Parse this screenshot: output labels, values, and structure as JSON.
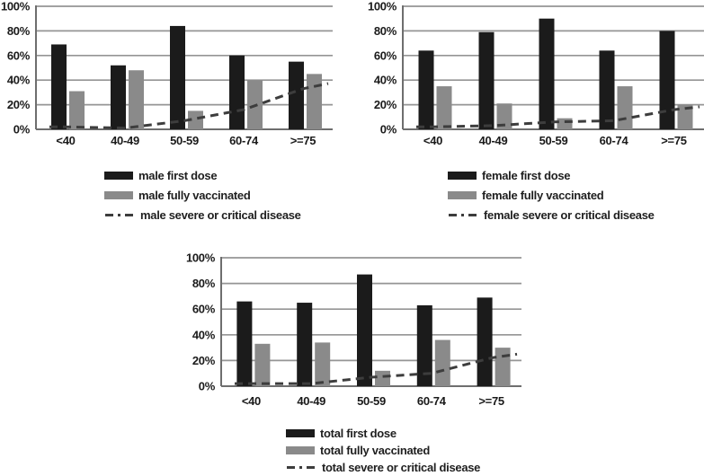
{
  "page": {
    "background": "#ffffff"
  },
  "colors": {
    "bar_dark": "#1b1b1b",
    "bar_gray": "#8a8a8a",
    "dash_line": "#3d3d3d",
    "gridline": "#959595",
    "axis": "#6e6e6e",
    "text": "#1a1a1a"
  },
  "chart_data": [
    {
      "id": "male",
      "type": "bar",
      "title": "",
      "categories": [
        "<40",
        "40-49",
        "50-59",
        "60-74",
        ">=75"
      ],
      "y_tick_labels": [
        "0%",
        "20%",
        "40%",
        "60%",
        "80%",
        "100%"
      ],
      "ylim": [
        0,
        100
      ],
      "grid": true,
      "legend_position": "below-left",
      "series": [
        {
          "name": "male first dose",
          "type": "bar",
          "color": "#1b1b1b",
          "values": [
            69,
            52,
            84,
            60,
            55
          ]
        },
        {
          "name": "male fully vaccinated",
          "type": "bar",
          "color": "#8a8a8a",
          "values": [
            31,
            48,
            15,
            40,
            45
          ]
        },
        {
          "name": "male severe or critical disease",
          "type": "line",
          "dashed": true,
          "color": "#3d3d3d",
          "values": [
            2,
            1,
            7,
            16,
            33
          ]
        }
      ]
    },
    {
      "id": "female",
      "type": "bar",
      "title": "",
      "categories": [
        "<40",
        "40-49",
        "50-59",
        "60-74",
        ">=75"
      ],
      "y_tick_labels": [
        "0%",
        "20%",
        "40%",
        "60%",
        "80%",
        "100%"
      ],
      "ylim": [
        0,
        100
      ],
      "grid": true,
      "legend_position": "below-left",
      "series": [
        {
          "name": "female first dose",
          "type": "bar",
          "color": "#1b1b1b",
          "values": [
            64,
            79,
            90,
            64,
            80
          ]
        },
        {
          "name": "female fully vaccinated",
          "type": "bar",
          "color": "#8a8a8a",
          "values": [
            35,
            21,
            9,
            35,
            20
          ]
        },
        {
          "name": "female severe or critical disease",
          "type": "line",
          "dashed": true,
          "color": "#3d3d3d",
          "values": [
            2,
            3,
            6,
            7,
            16
          ]
        }
      ]
    },
    {
      "id": "total",
      "type": "bar",
      "title": "",
      "categories": [
        "<40",
        "40-49",
        "50-59",
        "60-74",
        ">=75"
      ],
      "y_tick_labels": [
        "0%",
        "20%",
        "40%",
        "60%",
        "80%",
        "100%"
      ],
      "ylim": [
        0,
        100
      ],
      "grid": true,
      "legend_position": "below-left",
      "series": [
        {
          "name": "total first dose",
          "type": "bar",
          "color": "#1b1b1b",
          "values": [
            66,
            65,
            87,
            63,
            69
          ]
        },
        {
          "name": "total fully vaccinated",
          "type": "bar",
          "color": "#8a8a8a",
          "values": [
            33,
            34,
            12,
            36,
            30
          ]
        },
        {
          "name": "total severe or critical disease",
          "type": "line",
          "dashed": true,
          "color": "#3d3d3d",
          "values": [
            2,
            2,
            7,
            10,
            22
          ]
        }
      ]
    }
  ]
}
